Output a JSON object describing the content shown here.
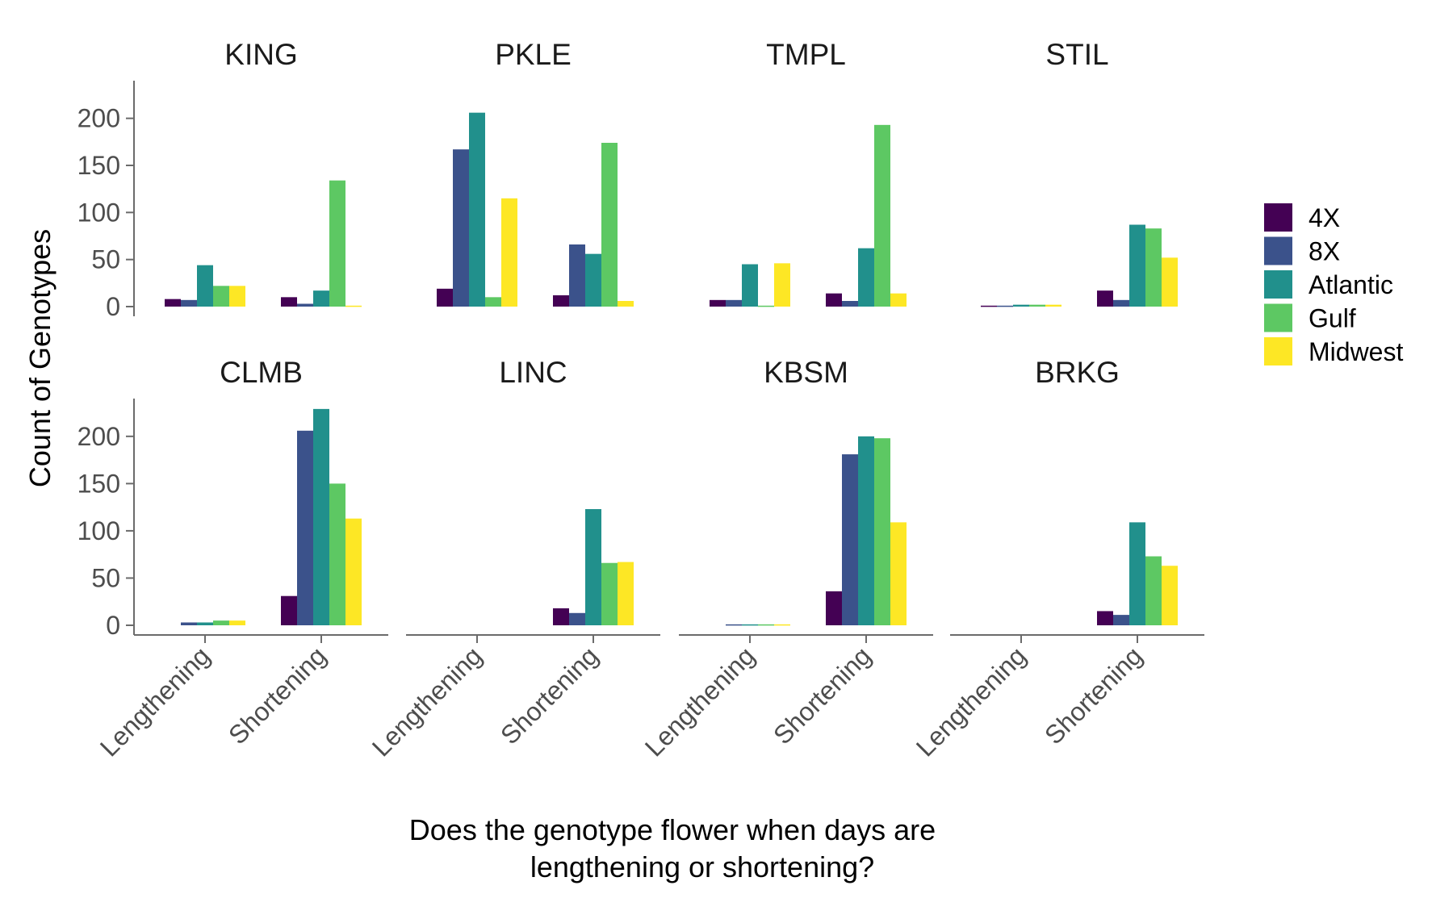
{
  "chart_data": {
    "type": "bar",
    "layout": "faceted grouped bar",
    "ylabel": "Count of Genotypes",
    "xlabel_lines": [
      "Does the genotype flower when days are",
      "lengthening or shortening?"
    ],
    "categories": [
      "Lengthening",
      "Shortening"
    ],
    "ylim": [
      0,
      240
    ],
    "yticks": [
      0,
      50,
      100,
      150,
      200
    ],
    "grid": false,
    "legend_position": "right",
    "series": [
      {
        "name": "4X",
        "color": "#440154"
      },
      {
        "name": "8X",
        "color": "#3b528b"
      },
      {
        "name": "Atlantic",
        "color": "#21908c"
      },
      {
        "name": "Gulf",
        "color": "#5dc863"
      },
      {
        "name": "Midwest",
        "color": "#fde725"
      }
    ],
    "facets": [
      {
        "name": "KING",
        "values": {
          "Lengthening": [
            8,
            7,
            44,
            22,
            22
          ],
          "Shortening": [
            10,
            3,
            17,
            134,
            1
          ]
        }
      },
      {
        "name": "PKLE",
        "values": {
          "Lengthening": [
            19,
            167,
            206,
            10,
            115
          ],
          "Shortening": [
            12,
            66,
            56,
            174,
            6
          ]
        }
      },
      {
        "name": "TMPL",
        "values": {
          "Lengthening": [
            7,
            7,
            45,
            1,
            46
          ],
          "Shortening": [
            14,
            6,
            62,
            193,
            14
          ]
        }
      },
      {
        "name": "STIL",
        "values": {
          "Lengthening": [
            1,
            1,
            2,
            2,
            2
          ],
          "Shortening": [
            17,
            7,
            87,
            83,
            52
          ]
        }
      },
      {
        "name": "CLMB",
        "values": {
          "Lengthening": [
            0,
            3,
            3,
            5,
            5
          ],
          "Shortening": [
            31,
            206,
            229,
            150,
            113
          ]
        }
      },
      {
        "name": "LINC",
        "values": {
          "Lengthening": [
            0,
            0,
            0,
            0,
            0
          ],
          "Shortening": [
            18,
            13,
            123,
            66,
            67
          ]
        }
      },
      {
        "name": "KBSM",
        "values": {
          "Lengthening": [
            0,
            1,
            1,
            1,
            1
          ],
          "Shortening": [
            36,
            181,
            200,
            198,
            109
          ]
        }
      },
      {
        "name": "BRKG",
        "values": {
          "Lengthening": [
            0,
            0,
            0,
            0,
            0
          ],
          "Shortening": [
            15,
            11,
            109,
            73,
            63
          ]
        }
      }
    ]
  }
}
